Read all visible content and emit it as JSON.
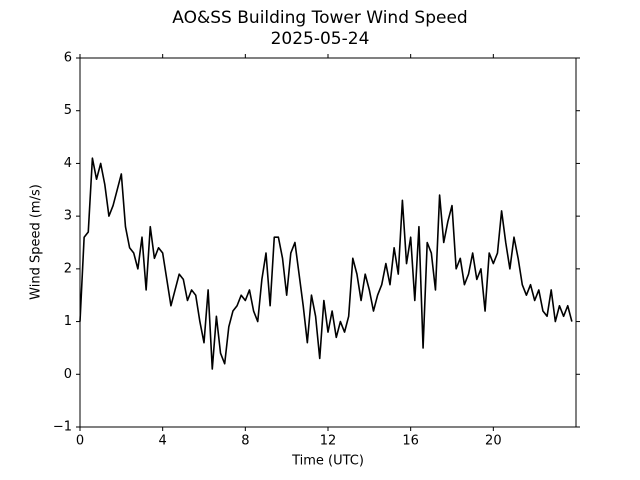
{
  "chart_data": {
    "type": "line",
    "title": "AO&SS Building Tower Wind Speed",
    "subtitle": "2025-05-24",
    "xlabel": "Time (UTC)",
    "ylabel": "Wind Speed (m/s)",
    "color": "#000000",
    "xlim": [
      0,
      24
    ],
    "xticks": [
      0,
      4,
      8,
      12,
      16,
      20
    ],
    "ylim": [
      -1,
      6
    ],
    "yticks": [
      {
        "value": -1,
        "label": "−1"
      },
      0,
      1,
      2,
      3,
      4,
      5,
      6
    ],
    "grid": false,
    "x": [
      0,
      0.2,
      0.4,
      0.6,
      0.8,
      1,
      1.2,
      1.4,
      1.6,
      1.8,
      2,
      2.2,
      2.4,
      2.6,
      2.8,
      3,
      3.2,
      3.4,
      3.6,
      3.8,
      4,
      4.2,
      4.4,
      4.6,
      4.8,
      5,
      5.2,
      5.4,
      5.6,
      5.8,
      6,
      6.2,
      6.4,
      6.6,
      6.8,
      7,
      7.2,
      7.4,
      7.6,
      7.8,
      8,
      8.2,
      8.4,
      8.6,
      8.8,
      9,
      9.2,
      9.4,
      9.6,
      9.8,
      10,
      10.2,
      10.4,
      10.6,
      10.8,
      11,
      11.2,
      11.4,
      11.6,
      11.8,
      12,
      12.2,
      12.4,
      12.6,
      12.8,
      13,
      13.2,
      13.4,
      13.6,
      13.8,
      14,
      14.2,
      14.4,
      14.6,
      14.8,
      15,
      15.2,
      15.4,
      15.6,
      15.8,
      16,
      16.2,
      16.4,
      16.6,
      16.8,
      17,
      17.2,
      17.4,
      17.6,
      17.8,
      18,
      18.2,
      18.4,
      18.6,
      18.8,
      19,
      19.2,
      19.4,
      19.6,
      19.8,
      20,
      20.2,
      20.4,
      20.6,
      20.8,
      21,
      21.2,
      21.4,
      21.6,
      21.8,
      22,
      22.2,
      22.4,
      22.6,
      22.8,
      23,
      23.2,
      23.4,
      23.6,
      23.8
    ],
    "values": [
      1.0,
      2.6,
      2.7,
      4.1,
      3.7,
      4.0,
      3.6,
      3.0,
      3.2,
      3.5,
      3.8,
      2.8,
      2.4,
      2.3,
      2.0,
      2.6,
      1.6,
      2.8,
      2.2,
      2.4,
      2.3,
      1.8,
      1.3,
      1.6,
      1.9,
      1.8,
      1.4,
      1.6,
      1.5,
      1.0,
      0.6,
      1.6,
      0.1,
      1.1,
      0.4,
      0.2,
      0.9,
      1.2,
      1.3,
      1.5,
      1.4,
      1.6,
      1.2,
      1.0,
      1.8,
      2.3,
      1.3,
      2.6,
      2.6,
      2.2,
      1.5,
      2.3,
      2.5,
      1.9,
      1.3,
      0.6,
      1.5,
      1.1,
      0.3,
      1.4,
      0.8,
      1.2,
      0.7,
      1.0,
      0.8,
      1.1,
      2.2,
      1.9,
      1.4,
      1.9,
      1.6,
      1.2,
      1.5,
      1.7,
      2.1,
      1.7,
      2.4,
      1.9,
      3.3,
      2.1,
      2.6,
      1.4,
      2.8,
      0.5,
      2.5,
      2.3,
      1.6,
      3.4,
      2.5,
      2.9,
      3.2,
      2.0,
      2.2,
      1.7,
      1.9,
      2.3,
      1.8,
      2.0,
      1.2,
      2.3,
      2.1,
      2.3,
      3.1,
      2.5,
      2.0,
      2.6,
      2.2,
      1.7,
      1.5,
      1.7,
      1.4,
      1.6,
      1.2,
      1.1,
      1.6,
      1.0,
      1.3,
      1.1,
      1.3,
      1.0
    ]
  }
}
